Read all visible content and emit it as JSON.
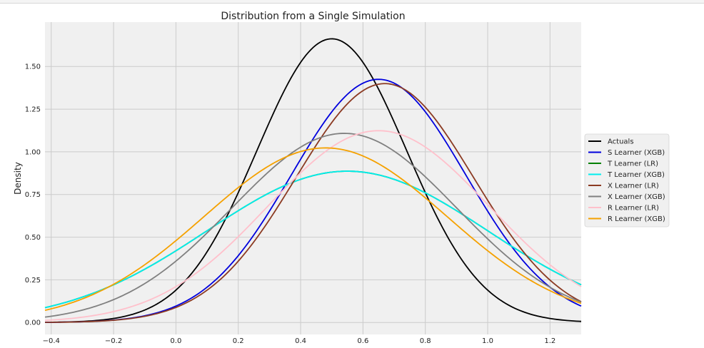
{
  "chart_data": {
    "type": "line",
    "title": "Distribution from a Single Simulation",
    "xlabel": "",
    "ylabel": "Density",
    "xlim": [
      -0.42,
      1.3
    ],
    "ylim": [
      -0.07,
      1.76
    ],
    "x_ticks": [
      -0.4,
      -0.2,
      0.0,
      0.2,
      0.4,
      0.6,
      0.8,
      1.0,
      1.2
    ],
    "x_tick_labels": [
      "−0.4",
      "−0.2",
      "0.0",
      "0.2",
      "0.4",
      "0.6",
      "0.8",
      "1.0",
      "1.2"
    ],
    "y_ticks": [
      0.0,
      0.25,
      0.5,
      0.75,
      1.0,
      1.25,
      1.5
    ],
    "y_tick_labels": [
      "0.00",
      "0.25",
      "0.50",
      "0.75",
      "1.00",
      "1.25",
      "1.50"
    ],
    "grid": true,
    "legend_position": "center-right",
    "series": [
      {
        "name": "Actuals",
        "color": "#000000",
        "mean": 0.5,
        "std": 0.24
      },
      {
        "name": "S Learner (XGB)",
        "color": "#0000dd",
        "mean": 0.65,
        "std": 0.28
      },
      {
        "name": "T Learner (LR)",
        "color": "#008000",
        "mean": 0.55,
        "std": 0.45
      },
      {
        "name": "T Learner (XGB)",
        "color": "#00eeee",
        "mean": 0.55,
        "std": 0.45
      },
      {
        "name": "X Learner (LR)",
        "color": "#8b3a22",
        "mean": 0.67,
        "std": 0.285
      },
      {
        "name": "X Learner (XGB)",
        "color": "#808080",
        "mean": 0.54,
        "std": 0.36
      },
      {
        "name": "R Learner (LR)",
        "color": "#ffc0cb",
        "mean": 0.65,
        "std": 0.355
      },
      {
        "name": "R Learner (XGB)",
        "color": "#f5a100",
        "mean": 0.48,
        "std": 0.39
      }
    ]
  }
}
